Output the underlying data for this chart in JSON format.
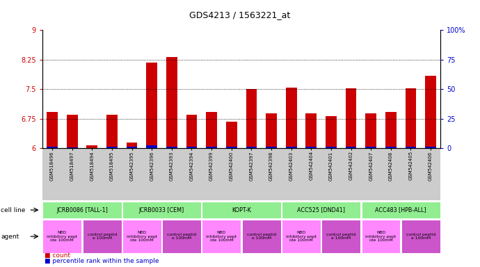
{
  "title": "GDS4213 / 1563221_at",
  "samples": [
    "GSM518496",
    "GSM518497",
    "GSM518494",
    "GSM518495",
    "GSM542395",
    "GSM542396",
    "GSM542393",
    "GSM542394",
    "GSM542399",
    "GSM542400",
    "GSM542397",
    "GSM542398",
    "GSM542403",
    "GSM542404",
    "GSM542401",
    "GSM542402",
    "GSM542407",
    "GSM542408",
    "GSM542405",
    "GSM542406"
  ],
  "red_values": [
    6.92,
    6.85,
    6.08,
    6.84,
    6.15,
    8.18,
    8.32,
    6.84,
    6.92,
    6.68,
    7.5,
    6.88,
    7.54,
    6.88,
    6.82,
    7.51,
    6.88,
    6.92,
    7.51,
    7.84
  ],
  "blue_values": [
    0.04,
    0.02,
    0.01,
    0.03,
    0.04,
    0.07,
    0.04,
    0.04,
    0.04,
    0.04,
    0.04,
    0.04,
    0.04,
    0.04,
    0.04,
    0.04,
    0.04,
    0.04,
    0.04,
    0.04
  ],
  "ylim_left": [
    6.0,
    9.0
  ],
  "ylim_right": [
    0,
    100
  ],
  "yticks_left": [
    6.0,
    6.75,
    7.5,
    8.25,
    9.0
  ],
  "yticks_right": [
    0,
    25,
    50,
    75,
    100
  ],
  "ytick_labels_left": [
    "6",
    "6.75",
    "7.5",
    "8.25",
    "9"
  ],
  "ytick_labels_right": [
    "0",
    "25",
    "50",
    "75",
    "100%"
  ],
  "hlines": [
    6.75,
    7.5,
    8.25
  ],
  "cell_line_groups": [
    {
      "label": "JCRB0086 [TALL-1]",
      "start": 0,
      "end": 3,
      "color": "#90EE90"
    },
    {
      "label": "JCRB0033 [CEM]",
      "start": 4,
      "end": 7,
      "color": "#90EE90"
    },
    {
      "label": "KOPT-K",
      "start": 8,
      "end": 11,
      "color": "#90EE90"
    },
    {
      "label": "ACC525 [DND41]",
      "start": 12,
      "end": 15,
      "color": "#90EE90"
    },
    {
      "label": "ACC483 [HPB-ALL]",
      "start": 16,
      "end": 19,
      "color": "#90EE90"
    }
  ],
  "agent_groups": [
    {
      "label": "NBD\ninhibitory pept\nide 100mM",
      "start": 0,
      "end": 1,
      "nbd": true
    },
    {
      "label": "control peptid\ne 100mM",
      "start": 2,
      "end": 3,
      "nbd": false
    },
    {
      "label": "NBD\ninhibitory pept\nide 100mM",
      "start": 4,
      "end": 5,
      "nbd": true
    },
    {
      "label": "control peptid\ne 100mM",
      "start": 6,
      "end": 7,
      "nbd": false
    },
    {
      "label": "NBD\ninhibitory pept\nide 100mM",
      "start": 8,
      "end": 9,
      "nbd": true
    },
    {
      "label": "control peptid\ne 100mM",
      "start": 10,
      "end": 11,
      "nbd": false
    },
    {
      "label": "NBD\ninhibitory pept\nide 100mM",
      "start": 12,
      "end": 13,
      "nbd": true
    },
    {
      "label": "control peptid\ne 100mM",
      "start": 14,
      "end": 15,
      "nbd": false
    },
    {
      "label": "NBD\ninhibitory pept\nide 100mM",
      "start": 16,
      "end": 17,
      "nbd": true
    },
    {
      "label": "control peptid\ne 100mM",
      "start": 18,
      "end": 19,
      "nbd": false
    }
  ],
  "bar_color_red": "#CC0000",
  "bar_color_blue": "#0000CC",
  "bar_width": 0.55,
  "plot_bg": "#FFFFFF",
  "left_tick_color": "#CC0000",
  "right_tick_color": "#0000CC",
  "agent_color_nbd": "#FF88FF",
  "agent_color_ctrl": "#CC55CC",
  "cell_line_color": "#90EE90",
  "sample_bg_color": "#CCCCCC"
}
